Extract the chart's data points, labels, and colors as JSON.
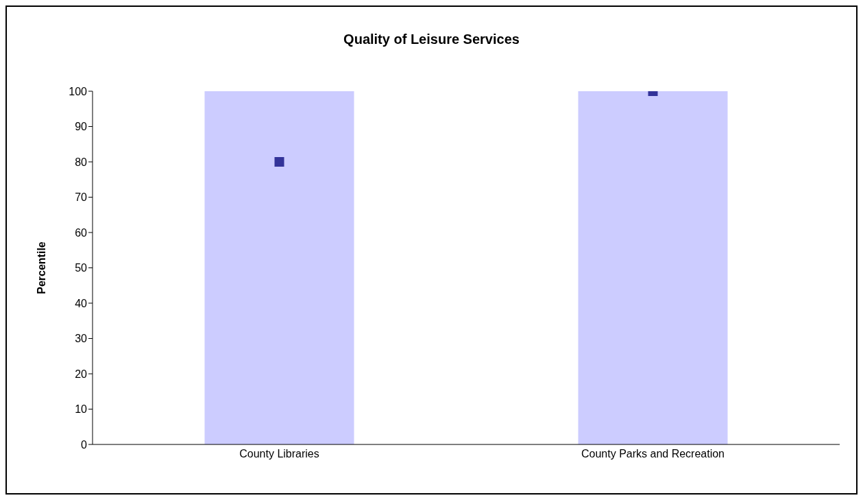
{
  "chart_data": {
    "type": "bar",
    "title": "Quality of Leisure Services",
    "ylabel": "Percentile",
    "categories": [
      "County Libraries",
      "County Parks and Recreation"
    ],
    "series": [
      {
        "color": "#ccccff",
        "values": [
          100,
          100
        ]
      },
      {
        "type": "scatter",
        "color": "#333399",
        "values": [
          80,
          100
        ]
      }
    ],
    "marker": "square",
    "ylim": [
      0,
      100
    ],
    "yticks": [
      0,
      10,
      20,
      30,
      40,
      50,
      60,
      70,
      80,
      90,
      100
    ],
    "grid": false,
    "legend": false
  }
}
